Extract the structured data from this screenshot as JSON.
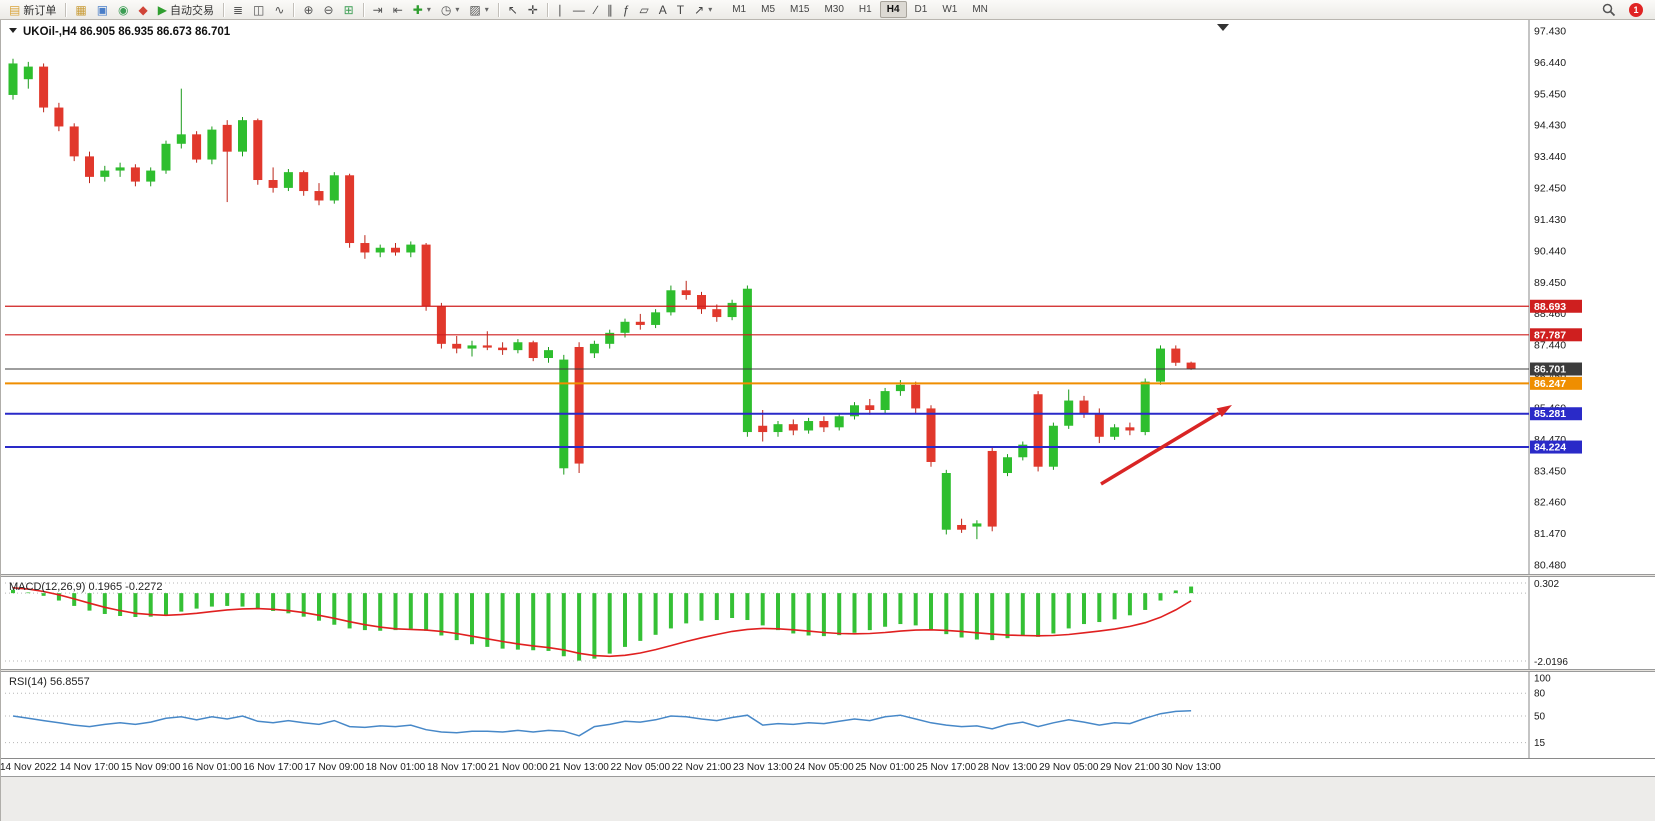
{
  "toolbar": {
    "notification_badge": "1",
    "timeframes": [
      "M1",
      "M5",
      "M15",
      "M30",
      "H1",
      "H4",
      "D1",
      "W1",
      "MN"
    ],
    "active_timeframe": "H4",
    "groups": [
      {
        "items": [
          {
            "name": "new-order-button",
            "glyph": "▤",
            "glyph_color": "#d9a43a",
            "label": "新订单"
          }
        ]
      },
      {
        "items": [
          {
            "name": "charts-window-button",
            "glyph": "▦",
            "glyph_color": "#c89b35"
          },
          {
            "name": "market-watch-button",
            "glyph": "▣",
            "glyph_color": "#4a7ec8"
          },
          {
            "name": "data-window-button",
            "glyph": "◉",
            "glyph_color": "#3c9e54"
          },
          {
            "name": "navigator-button",
            "glyph": "◆",
            "glyph_color": "#d04438"
          },
          {
            "name": "auto-trading-button",
            "glyph": "▶",
            "glyph_color": "#2f9e2f",
            "label": "自动交易"
          }
        ]
      },
      {
        "items": [
          {
            "name": "bar-chart-button",
            "glyph": "≣",
            "glyph_color": "#555555"
          },
          {
            "name": "candlestick-chart-button",
            "glyph": "◫",
            "glyph_color": "#555555"
          },
          {
            "name": "line-chart-button",
            "glyph": "∿",
            "glyph_color": "#555555"
          }
        ]
      },
      {
        "items": [
          {
            "name": "zoom-in-button",
            "glyph": "⊕",
            "glyph_color": "#555555"
          },
          {
            "name": "zoom-out-button",
            "glyph": "⊖",
            "glyph_color": "#555555"
          },
          {
            "name": "tile-windows-button",
            "glyph": "⊞",
            "glyph_color": "#3c9e54"
          }
        ]
      },
      {
        "items": [
          {
            "name": "auto-scroll-button",
            "glyph": "⇥",
            "glyph_color": "#555555"
          },
          {
            "name": "chart-shift-button",
            "glyph": "⇤",
            "glyph_color": "#555555"
          },
          {
            "name": "add-indicator-button",
            "glyph": "✚",
            "glyph_color": "#2f9e2f",
            "caret": true
          },
          {
            "name": "period-menu-button",
            "glyph": "◷",
            "glyph_color": "#555555",
            "caret": true
          },
          {
            "name": "template-menu-button",
            "glyph": "▨",
            "glyph_color": "#555555",
            "caret": true
          }
        ]
      },
      {
        "items": [
          {
            "name": "cursor-button",
            "glyph": "↖",
            "glyph_color": "#444444"
          },
          {
            "name": "crosshair-button",
            "glyph": "✛",
            "glyph_color": "#444444"
          }
        ]
      },
      {
        "items": [
          {
            "name": "vertical-line-button",
            "glyph": "∣",
            "glyph_color": "#444444"
          },
          {
            "name": "horizontal-line-button",
            "glyph": "—",
            "glyph_color": "#444444"
          },
          {
            "name": "trendline-button",
            "glyph": "∕",
            "glyph_color": "#444444"
          },
          {
            "name": "channel-button",
            "glyph": "∥",
            "glyph_color": "#444444"
          },
          {
            "name": "fibonacci-button",
            "glyph": "ƒ",
            "glyph_color": "#444444"
          },
          {
            "name": "shapes-button",
            "glyph": "▱",
            "glyph_color": "#444444"
          },
          {
            "name": "text-button",
            "glyph": "A",
            "glyph_color": "#444444"
          },
          {
            "name": "text-label-button",
            "glyph": "T",
            "glyph_color": "#444444"
          },
          {
            "name": "arrows-button",
            "glyph": "↗",
            "glyph_color": "#444444",
            "caret": true
          }
        ]
      }
    ]
  },
  "chart_data": {
    "type": "candlestick",
    "title": "UKOil-,H4 86.905 86.935 86.673 86.701",
    "symbol": "UKOil-",
    "period": "H4",
    "ohlc_current": {
      "open": 86.905,
      "high": 86.935,
      "low": 86.673,
      "close": 86.701
    },
    "price_axis": {
      "top_value": 97.43,
      "bottom_value": 80.48,
      "tic­ks_note": "",
      "ticks": [
        "97.430",
        "96.440",
        "95.450",
        "94.430",
        "93.440",
        "92.450",
        "91.430",
        "90.440",
        "89.450",
        "88.460",
        "87.440",
        "86.450",
        "85.460",
        "84.470",
        "83.450",
        "82.460",
        "81.470",
        "80.480"
      ]
    },
    "hlines": [
      {
        "price": 88.693,
        "label": "88.693",
        "color": "#cf1f1f",
        "width": 1.2
      },
      {
        "price": 87.787,
        "label": "87.787",
        "color": "#cf1f1f",
        "width": 1.2
      },
      {
        "price": 86.701,
        "label": "86.701",
        "color": "#3c3c3c",
        "width": 1
      },
      {
        "price": 86.247,
        "label": "86.247",
        "color": "#ef8e00",
        "width": 2
      },
      {
        "price": 85.281,
        "label": "85.281",
        "color": "#2a2ac8",
        "width": 2
      },
      {
        "price": 84.224,
        "label": "84.224",
        "color": "#2a2ac8",
        "width": 2
      }
    ],
    "time_axis": [
      "14 Nov 2022",
      "14 Nov 17:00",
      "15 Nov 09:00",
      "16 Nov 01:00",
      "16 Nov 17:00",
      "17 Nov 09:00",
      "18 Nov 01:00",
      "18 Nov 17:00",
      "21 Nov 00:00",
      "21 Nov 13:00",
      "22 Nov 05:00",
      "22 Nov 21:00",
      "23 Nov 13:00",
      "24 Nov 05:00",
      "25 Nov 01:00",
      "25 Nov 17:00",
      "28 Nov 13:00",
      "29 Nov 05:00",
      "29 Nov 21:00",
      "30 Nov 13:00"
    ],
    "colors": {
      "up": "#2ebe2e",
      "down": "#e1382c",
      "up_wick": "#1a9a1a",
      "down_wick": "#bb2418"
    },
    "arrow_color": "#d92525",
    "candles": [
      [
        95.4,
        96.55,
        95.25,
        96.4
      ],
      [
        95.9,
        96.45,
        95.6,
        96.3
      ],
      [
        96.3,
        96.4,
        94.85,
        95.0
      ],
      [
        95.0,
        95.15,
        94.25,
        94.4
      ],
      [
        94.4,
        94.5,
        93.3,
        93.45
      ],
      [
        93.45,
        93.6,
        92.6,
        92.8
      ],
      [
        92.8,
        93.15,
        92.65,
        93.0
      ],
      [
        93.0,
        93.25,
        92.8,
        93.1
      ],
      [
        93.1,
        93.2,
        92.5,
        92.65
      ],
      [
        92.65,
        93.1,
        92.5,
        93.0
      ],
      [
        93.0,
        93.95,
        92.9,
        93.85
      ],
      [
        93.85,
        95.6,
        93.7,
        94.15
      ],
      [
        94.15,
        94.25,
        93.25,
        93.35
      ],
      [
        93.35,
        94.4,
        93.2,
        94.3
      ],
      [
        94.45,
        94.6,
        92.0,
        93.6
      ],
      [
        93.6,
        94.7,
        93.45,
        94.6
      ],
      [
        94.6,
        94.65,
        92.55,
        92.7
      ],
      [
        92.7,
        93.1,
        92.3,
        92.45
      ],
      [
        92.45,
        93.05,
        92.35,
        92.95
      ],
      [
        92.95,
        93.0,
        92.2,
        92.35
      ],
      [
        92.35,
        92.6,
        91.9,
        92.05
      ],
      [
        92.05,
        92.95,
        91.95,
        92.85
      ],
      [
        92.85,
        92.9,
        90.55,
        90.7
      ],
      [
        90.7,
        90.95,
        90.2,
        90.4
      ],
      [
        90.4,
        90.65,
        90.25,
        90.55
      ],
      [
        90.55,
        90.7,
        90.3,
        90.4
      ],
      [
        90.4,
        90.75,
        90.25,
        90.65
      ],
      [
        90.65,
        90.7,
        88.55,
        88.7
      ],
      [
        88.7,
        88.8,
        87.35,
        87.5
      ],
      [
        87.5,
        87.75,
        87.2,
        87.35
      ],
      [
        87.35,
        87.6,
        87.1,
        87.45
      ],
      [
        87.45,
        87.9,
        87.3,
        87.38
      ],
      [
        87.38,
        87.55,
        87.15,
        87.3
      ],
      [
        87.3,
        87.65,
        87.2,
        87.55
      ],
      [
        87.55,
        87.6,
        86.95,
        87.05
      ],
      [
        87.05,
        87.4,
        86.9,
        87.3
      ],
      [
        83.55,
        87.15,
        83.35,
        87.0
      ],
      [
        87.4,
        87.55,
        83.4,
        83.7
      ],
      [
        87.2,
        87.6,
        87.05,
        87.5
      ],
      [
        87.5,
        87.95,
        87.35,
        87.85
      ],
      [
        87.85,
        88.3,
        87.7,
        88.2
      ],
      [
        88.2,
        88.45,
        87.95,
        88.1
      ],
      [
        88.1,
        88.6,
        88.0,
        88.5
      ],
      [
        88.5,
        89.35,
        88.4,
        89.2
      ],
      [
        89.2,
        89.5,
        88.9,
        89.05
      ],
      [
        89.05,
        89.15,
        88.45,
        88.6
      ],
      [
        88.6,
        88.75,
        88.2,
        88.35
      ],
      [
        88.35,
        88.9,
        88.25,
        88.8
      ],
      [
        84.7,
        89.35,
        84.55,
        89.25
      ],
      [
        84.9,
        85.4,
        84.4,
        84.7
      ],
      [
        84.7,
        85.05,
        84.55,
        84.95
      ],
      [
        84.95,
        85.1,
        84.6,
        84.75
      ],
      [
        84.75,
        85.15,
        84.65,
        85.05
      ],
      [
        85.05,
        85.2,
        84.7,
        84.85
      ],
      [
        84.85,
        85.3,
        84.75,
        85.2
      ],
      [
        85.2,
        85.65,
        85.1,
        85.55
      ],
      [
        85.55,
        85.75,
        85.25,
        85.4
      ],
      [
        85.4,
        86.1,
        85.3,
        86.0
      ],
      [
        86.0,
        86.35,
        85.85,
        86.2
      ],
      [
        86.2,
        86.3,
        85.3,
        85.45
      ],
      [
        85.45,
        85.55,
        83.6,
        83.75
      ],
      [
        81.6,
        83.5,
        81.45,
        83.4
      ],
      [
        81.75,
        81.95,
        81.5,
        81.6
      ],
      [
        81.7,
        81.9,
        81.3,
        81.8
      ],
      [
        84.1,
        84.2,
        81.55,
        81.7
      ],
      [
        83.4,
        84.0,
        83.3,
        83.9
      ],
      [
        83.9,
        84.4,
        83.8,
        84.3
      ],
      [
        85.9,
        86.0,
        83.45,
        83.6
      ],
      [
        83.6,
        85.0,
        83.5,
        84.9
      ],
      [
        84.9,
        86.05,
        84.8,
        85.7
      ],
      [
        85.7,
        85.85,
        85.15,
        85.3
      ],
      [
        85.3,
        85.45,
        84.35,
        84.55
      ],
      [
        84.55,
        84.95,
        84.45,
        84.85
      ],
      [
        84.85,
        85.0,
        84.6,
        84.75
      ],
      [
        84.7,
        86.4,
        84.6,
        86.3
      ],
      [
        86.3,
        87.45,
        86.2,
        87.35
      ],
      [
        87.35,
        87.45,
        86.8,
        86.9
      ],
      [
        86.905,
        86.935,
        86.673,
        86.701
      ]
    ]
  },
  "macd": {
    "label": "MACD(12,26,9) 0.1965 -0.2272",
    "scale_max_label": "0.302",
    "scale_min_label": "-2.0196",
    "scale_max": 0.302,
    "scale_min": -2.0196,
    "histogram_color": "#35c035",
    "signal_color": "#e02020",
    "histogram": [
      0.1,
      0.02,
      -0.08,
      -0.22,
      -0.38,
      -0.52,
      -0.62,
      -0.68,
      -0.71,
      -0.7,
      -0.64,
      -0.55,
      -0.46,
      -0.4,
      -0.38,
      -0.4,
      -0.46,
      -0.53,
      -0.6,
      -0.7,
      -0.82,
      -0.94,
      -1.05,
      -1.1,
      -1.12,
      -1.1,
      -1.06,
      -1.12,
      -1.26,
      -1.4,
      -1.52,
      -1.6,
      -1.65,
      -1.68,
      -1.7,
      -1.72,
      -1.88,
      -2.01,
      -1.95,
      -1.8,
      -1.6,
      -1.42,
      -1.24,
      -1.05,
      -0.9,
      -0.82,
      -0.8,
      -0.74,
      -0.8,
      -0.96,
      -1.1,
      -1.2,
      -1.26,
      -1.28,
      -1.25,
      -1.18,
      -1.1,
      -1.0,
      -0.92,
      -0.96,
      -1.08,
      -1.22,
      -1.32,
      -1.38,
      -1.4,
      -1.34,
      -1.26,
      -1.3,
      -1.2,
      -1.05,
      -0.92,
      -0.86,
      -0.78,
      -0.66,
      -0.5,
      -0.22,
      0.08,
      0.1965
    ],
    "signal": [
      0.16,
      0.12,
      0.05,
      -0.05,
      -0.17,
      -0.3,
      -0.42,
      -0.52,
      -0.6,
      -0.64,
      -0.66,
      -0.64,
      -0.6,
      -0.55,
      -0.5,
      -0.47,
      -0.46,
      -0.48,
      -0.52,
      -0.58,
      -0.66,
      -0.75,
      -0.85,
      -0.94,
      -1.01,
      -1.06,
      -1.08,
      -1.1,
      -1.14,
      -1.2,
      -1.28,
      -1.36,
      -1.44,
      -1.51,
      -1.57,
      -1.62,
      -1.69,
      -1.79,
      -1.86,
      -1.88,
      -1.85,
      -1.78,
      -1.68,
      -1.56,
      -1.44,
      -1.33,
      -1.23,
      -1.14,
      -1.08,
      -1.05,
      -1.06,
      -1.09,
      -1.13,
      -1.17,
      -1.2,
      -1.21,
      -1.2,
      -1.17,
      -1.13,
      -1.1,
      -1.09,
      -1.11,
      -1.14,
      -1.18,
      -1.22,
      -1.25,
      -1.26,
      -1.27,
      -1.26,
      -1.23,
      -1.18,
      -1.13,
      -1.07,
      -0.99,
      -0.88,
      -0.72,
      -0.5,
      -0.2272
    ]
  },
  "rsi": {
    "label": "RSI(14) 56.8557",
    "color": "#4788c8",
    "level_labels": [
      "100",
      "80",
      "50",
      "15"
    ],
    "levels": [
      100,
      80,
      50,
      15
    ],
    "values": [
      50,
      47,
      44,
      41,
      38,
      36,
      39,
      41,
      39,
      42,
      47,
      49,
      45,
      49,
      46,
      50,
      43,
      41,
      44,
      41,
      39,
      44,
      36,
      35,
      37,
      36,
      38,
      32,
      29,
      28,
      30,
      30,
      29,
      31,
      29,
      31,
      30,
      24,
      36,
      39,
      43,
      42,
      45,
      50,
      49,
      46,
      44,
      48,
      51,
      38,
      40,
      39,
      41,
      40,
      43,
      46,
      44,
      49,
      51,
      46,
      41,
      38,
      36,
      37,
      33,
      39,
      42,
      36,
      41,
      45,
      42,
      38,
      41,
      40,
      47,
      53,
      56,
      56.8557
    ]
  }
}
